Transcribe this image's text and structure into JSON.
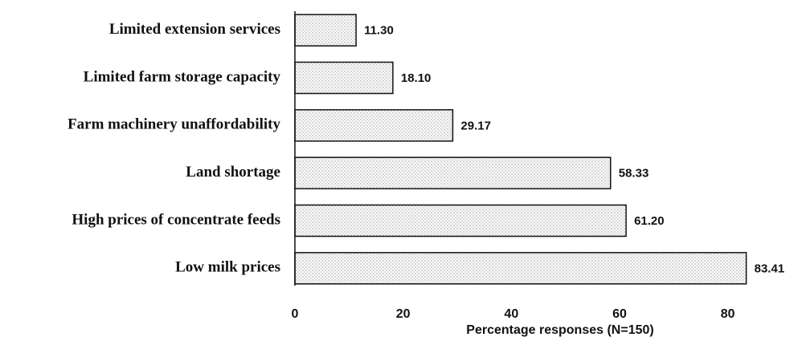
{
  "chart_data": {
    "type": "bar",
    "orientation": "horizontal",
    "x_label": "Percentage responses (N=150)",
    "categories": [
      "Limited extension services",
      "Limited farm storage capacity",
      "Farm machinery unaffordability",
      "Land shortage",
      "High prices of concentrate feeds",
      "Low milk prices"
    ],
    "values": [
      11.3,
      18.1,
      29.17,
      58.33,
      61.2,
      83.41
    ],
    "value_labels": [
      "11.30",
      "18.10",
      "29.17",
      "58.33",
      "61.20",
      "83.41"
    ],
    "xlim": [
      0,
      90
    ],
    "xticks": [
      0,
      20,
      40,
      60,
      80
    ]
  }
}
